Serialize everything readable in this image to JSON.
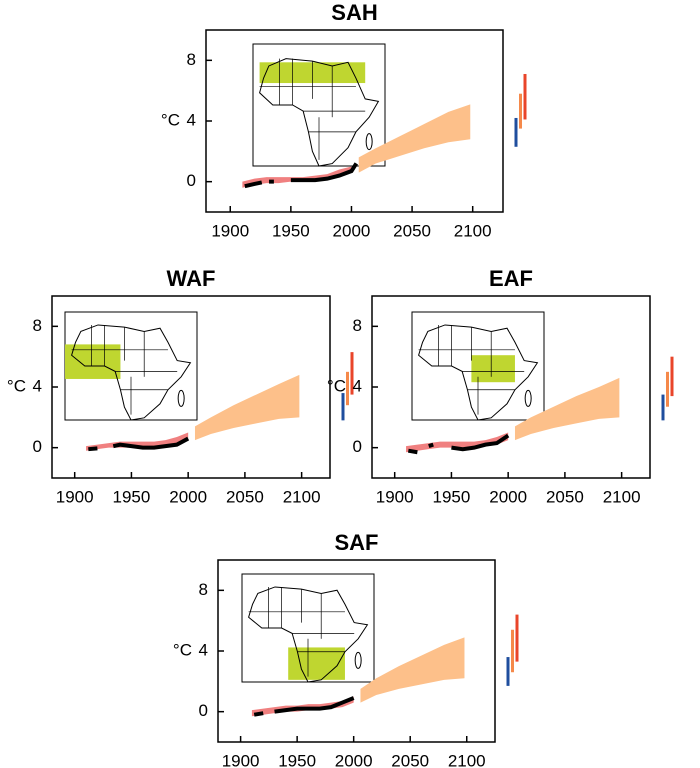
{
  "chart_data": [
    {
      "type": "line",
      "title": "SAH",
      "ylabel": "°C",
      "xlim": [
        1880,
        2125
      ],
      "ylim": [
        -2,
        10
      ],
      "xticks": [
        1900,
        1950,
        2000,
        2050,
        2100
      ],
      "yticks": [
        0,
        4,
        8
      ],
      "series": [
        {
          "color": "#000000",
          "x": [
            1912,
            1920,
            1926,
            1928,
            1932,
            1936,
            1942,
            1950,
            1960,
            1970,
            1980,
            1990,
            2000,
            2004
          ],
          "values": [
            -0.3,
            -0.15,
            -0.05,
            null,
            0.0,
            0.0,
            null,
            0.1,
            0.1,
            0.1,
            0.2,
            0.4,
            0.7,
            1.2
          ]
        }
      ],
      "bands": [
        {
          "color": "#f08080",
          "x": [
            1910,
            1920,
            1930,
            1940,
            1950,
            1960,
            1970,
            1980,
            1990,
            2000
          ],
          "low": [
            -0.4,
            -0.2,
            -0.1,
            -0.1,
            0.0,
            0.0,
            0.1,
            0.2,
            0.4,
            0.6
          ],
          "high": [
            0.0,
            0.2,
            0.3,
            0.3,
            0.3,
            0.3,
            0.4,
            0.5,
            0.8,
            1.0
          ]
        },
        {
          "color": "#fdc08a",
          "x": [
            2006,
            2020,
            2040,
            2060,
            2080,
            2098
          ],
          "low": [
            0.6,
            1.2,
            1.7,
            2.2,
            2.6,
            2.8
          ],
          "high": [
            1.6,
            2.2,
            3.0,
            3.8,
            4.6,
            5.1
          ]
        }
      ],
      "range_bars": [
        {
          "color": "#1f4e9e",
          "low": 2.3,
          "high": 4.2
        },
        {
          "color": "#f5894a",
          "low": 3.5,
          "high": 5.8
        },
        {
          "color": "#e9452a",
          "low": 4.1,
          "high": 7.1
        }
      ]
    },
    {
      "type": "line",
      "title": "WAF",
      "ylabel": "°C",
      "xlim": [
        1880,
        2125
      ],
      "ylim": [
        -2,
        10
      ],
      "xticks": [
        1900,
        1950,
        2000,
        2050,
        2100
      ],
      "yticks": [
        0,
        4,
        8
      ],
      "series": [
        {
          "color": "#000000",
          "x": [
            1912,
            1920,
            1928,
            1934,
            1940,
            1950,
            1960,
            1970,
            1980,
            1990,
            2000
          ],
          "values": [
            -0.1,
            -0.05,
            null,
            0.1,
            0.2,
            0.1,
            0.0,
            0.0,
            0.1,
            0.2,
            0.6
          ]
        }
      ],
      "bands": [
        {
          "color": "#f08080",
          "x": [
            1910,
            1920,
            1930,
            1940,
            1950,
            1960,
            1970,
            1980,
            1990,
            2000
          ],
          "low": [
            -0.2,
            -0.1,
            0.0,
            0.0,
            0.0,
            0.0,
            0.0,
            0.1,
            0.2,
            0.5
          ],
          "high": [
            0.1,
            0.2,
            0.3,
            0.4,
            0.4,
            0.4,
            0.4,
            0.5,
            0.7,
            1.0
          ]
        },
        {
          "color": "#fdc08a",
          "x": [
            2006,
            2020,
            2040,
            2060,
            2080,
            2098
          ],
          "low": [
            0.5,
            0.9,
            1.3,
            1.6,
            1.9,
            2.0
          ],
          "high": [
            1.4,
            2.0,
            2.8,
            3.5,
            4.2,
            4.8
          ]
        }
      ],
      "range_bars": [
        {
          "color": "#1f4e9e",
          "low": 1.8,
          "high": 3.6
        },
        {
          "color": "#f5894a",
          "low": 2.8,
          "high": 5.0
        },
        {
          "color": "#e9452a",
          "low": 3.5,
          "high": 6.3
        }
      ]
    },
    {
      "type": "line",
      "title": "EAF",
      "ylabel": "°C",
      "xlim": [
        1880,
        2125
      ],
      "ylim": [
        -2,
        10
      ],
      "xticks": [
        1900,
        1950,
        2000,
        2050,
        2100
      ],
      "yticks": [
        0,
        4,
        8
      ],
      "series": [
        {
          "color": "#000000",
          "x": [
            1912,
            1920,
            1925,
            1930,
            1934,
            1940,
            1950,
            1960,
            1970,
            1980,
            1990,
            2000
          ],
          "values": [
            -0.2,
            -0.3,
            null,
            0.1,
            0.2,
            null,
            0.0,
            -0.1,
            0.0,
            0.2,
            0.3,
            0.8
          ]
        }
      ],
      "bands": [
        {
          "color": "#f08080",
          "x": [
            1910,
            1920,
            1930,
            1940,
            1950,
            1960,
            1970,
            1980,
            1990,
            2000
          ],
          "low": [
            -0.3,
            -0.2,
            -0.1,
            0.0,
            0.0,
            0.0,
            0.0,
            0.1,
            0.2,
            0.5
          ],
          "high": [
            0.1,
            0.2,
            0.3,
            0.4,
            0.4,
            0.4,
            0.4,
            0.5,
            0.7,
            1.0
          ]
        },
        {
          "color": "#fdc08a",
          "x": [
            2006,
            2020,
            2040,
            2060,
            2080,
            2098
          ],
          "low": [
            0.5,
            0.9,
            1.3,
            1.6,
            1.9,
            2.0
          ],
          "high": [
            1.4,
            2.0,
            2.7,
            3.4,
            4.0,
            4.6
          ]
        }
      ],
      "range_bars": [
        {
          "color": "#1f4e9e",
          "low": 1.8,
          "high": 3.5
        },
        {
          "color": "#f5894a",
          "low": 2.7,
          "high": 5.0
        },
        {
          "color": "#e9452a",
          "low": 3.4,
          "high": 6.0
        }
      ]
    },
    {
      "type": "line",
      "title": "SAF",
      "ylabel": "°C",
      "xlim": [
        1880,
        2125
      ],
      "ylim": [
        -2,
        10
      ],
      "xticks": [
        1900,
        1950,
        2000,
        2050,
        2100
      ],
      "yticks": [
        0,
        4,
        8
      ],
      "series": [
        {
          "color": "#000000",
          "x": [
            1912,
            1920,
            1925,
            1930,
            1940,
            1950,
            1960,
            1970,
            1980,
            1990,
            2000
          ],
          "values": [
            -0.2,
            -0.1,
            null,
            0.0,
            0.1,
            0.2,
            0.2,
            0.2,
            0.3,
            0.6,
            0.9
          ]
        }
      ],
      "bands": [
        {
          "color": "#f08080",
          "x": [
            1910,
            1920,
            1930,
            1940,
            1950,
            1960,
            1970,
            1980,
            1990,
            2000
          ],
          "low": [
            -0.3,
            -0.2,
            -0.1,
            0.0,
            0.0,
            0.1,
            0.1,
            0.2,
            0.3,
            0.6
          ],
          "high": [
            0.1,
            0.2,
            0.3,
            0.4,
            0.4,
            0.5,
            0.5,
            0.6,
            0.7,
            1.0
          ]
        },
        {
          "color": "#fdc08a",
          "x": [
            2006,
            2020,
            2040,
            2060,
            2080,
            2098
          ],
          "low": [
            0.6,
            1.1,
            1.5,
            1.8,
            2.1,
            2.2
          ],
          "high": [
            1.5,
            2.2,
            3.0,
            3.7,
            4.4,
            4.9
          ]
        }
      ],
      "range_bars": [
        {
          "color": "#1f4e9e",
          "low": 1.7,
          "high": 3.6
        },
        {
          "color": "#f5894a",
          "low": 2.6,
          "high": 5.4
        },
        {
          "color": "#e9452a",
          "low": 3.3,
          "high": 6.4
        }
      ]
    }
  ]
}
